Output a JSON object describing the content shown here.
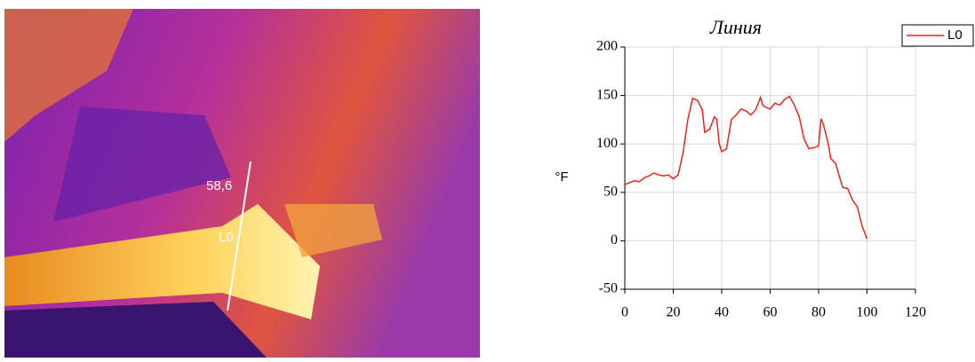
{
  "image_labels": {
    "spot_value": "58,6",
    "line_name": "L0"
  },
  "chart_data": {
    "type": "line",
    "title": "Линия",
    "ylabel": "°F",
    "x": [
      0,
      2,
      4,
      6,
      8,
      10,
      12,
      14,
      16,
      18,
      20,
      22,
      24,
      26,
      28,
      30,
      32,
      33,
      35,
      37,
      38,
      39,
      40,
      42,
      44,
      46,
      48,
      50,
      52,
      54,
      56,
      57,
      58,
      60,
      62,
      64,
      66,
      68,
      70,
      72,
      74,
      76,
      78,
      80,
      81,
      82,
      84,
      85,
      87,
      89,
      90,
      92,
      94,
      96,
      98,
      100
    ],
    "series": [
      {
        "name": "L0",
        "color": "#ee2222",
        "values": [
          58,
          60,
          62,
          61,
          65,
          67,
          70,
          68,
          67,
          68,
          64,
          68,
          90,
          125,
          147,
          145,
          135,
          112,
          115,
          128,
          125,
          100,
          92,
          95,
          125,
          130,
          136,
          134,
          130,
          135,
          148,
          140,
          138,
          136,
          142,
          140,
          146,
          149,
          140,
          128,
          105,
          95,
          96,
          98,
          126,
          120,
          100,
          85,
          80,
          63,
          55,
          54,
          42,
          35,
          15,
          2
        ]
      }
    ],
    "xlim": [
      0,
      120
    ],
    "xticks": [
      0,
      20,
      40,
      60,
      80,
      100,
      120
    ],
    "ylim": [
      -50,
      200
    ],
    "yticks": [
      -50,
      0,
      50,
      100,
      150,
      200
    ],
    "grid": true,
    "legend": "top-right"
  }
}
